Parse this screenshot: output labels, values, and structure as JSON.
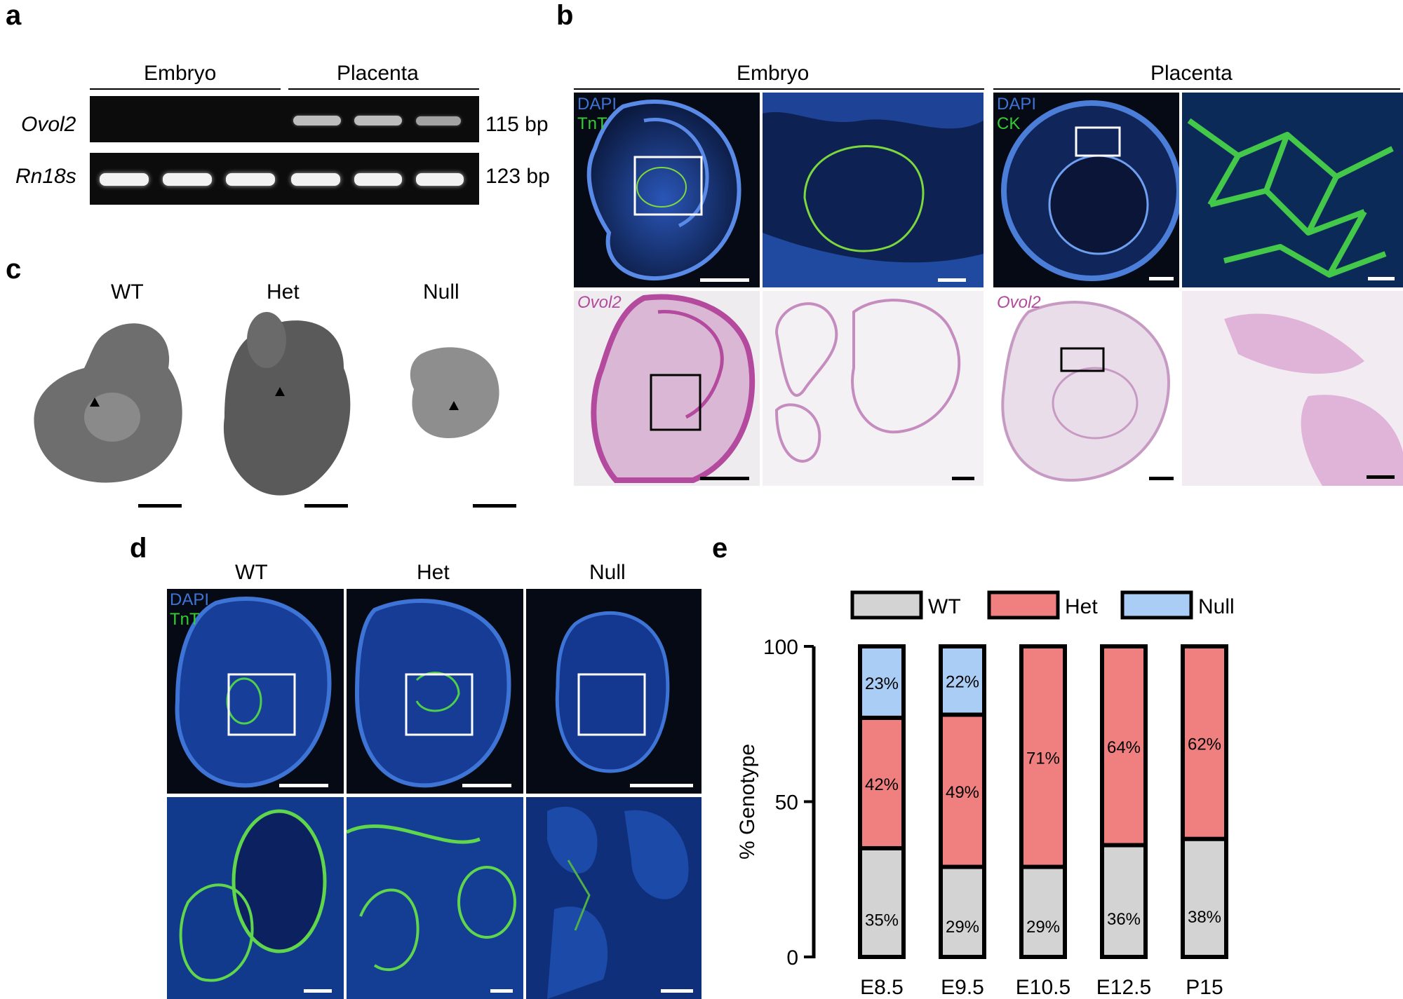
{
  "panel_letters": {
    "a": "a",
    "b": "b",
    "c": "c",
    "d": "d",
    "e": "e"
  },
  "panel_a": {
    "groups": [
      "Embryo",
      "Placenta"
    ],
    "rows": [
      {
        "gene": "Ovol2",
        "size": "115 bp"
      },
      {
        "gene": "Rn18s",
        "size": "123 bp"
      }
    ]
  },
  "panel_b": {
    "groups": [
      "Embryo",
      "Placenta"
    ],
    "embryo_stain": [
      "DAPI",
      "TnT"
    ],
    "placenta_stain": [
      "DAPI",
      "CK"
    ],
    "ish_label": "Ovol2"
  },
  "panel_c": {
    "genotypes": [
      "WT",
      "Het",
      "Null"
    ]
  },
  "panel_d": {
    "genotypes": [
      "WT",
      "Het",
      "Null"
    ],
    "stain": [
      "DAPI",
      "TnT"
    ]
  },
  "colors": {
    "wt": "#d3d3d3",
    "het": "#f08080",
    "null": "#a9cdf5",
    "dapi": "#3d74d6",
    "tnt": "#33cc33",
    "ish": "#b34a9e"
  },
  "chart_data": {
    "type": "bar",
    "stacked": true,
    "categories": [
      "E8.5",
      "E9.5",
      "E10.5",
      "E12.5",
      "P15"
    ],
    "series": [
      {
        "name": "WT",
        "values": [
          35,
          29,
          29,
          36,
          38
        ],
        "labels": [
          "35%",
          "29%",
          "29%",
          "36%",
          "38%"
        ]
      },
      {
        "name": "Het",
        "values": [
          42,
          49,
          71,
          64,
          62
        ],
        "labels": [
          "42%",
          "49%",
          "71%",
          "64%",
          "62%"
        ]
      },
      {
        "name": "Null",
        "values": [
          23,
          22,
          0,
          0,
          0
        ],
        "labels": [
          "23%",
          "22%",
          "",
          "",
          ""
        ]
      }
    ],
    "ylabel": "% Genotype",
    "yticks": [
      "0",
      "50",
      "100"
    ],
    "ylim": [
      0,
      100
    ],
    "legend_position": "top",
    "grid": false
  }
}
